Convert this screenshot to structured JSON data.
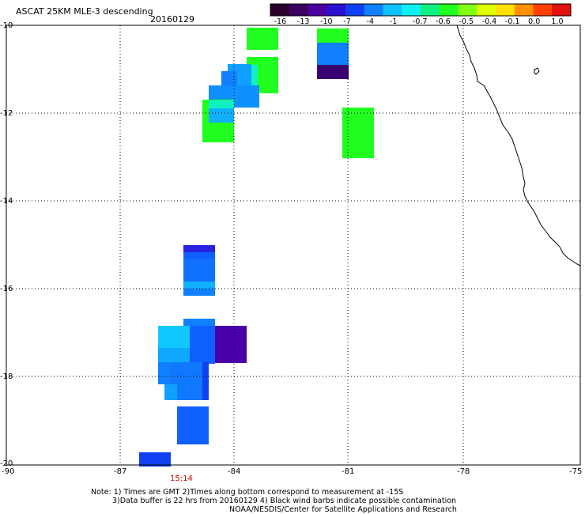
{
  "header": {
    "title": "ASCAT 25KM MLE-3 descending",
    "date": "20160129"
  },
  "colorbar": {
    "ticks": [
      "-16",
      "-13",
      "-10",
      "-7",
      "-4",
      "-1",
      "-0.7",
      "-0.6",
      "-0.5",
      "-0.4",
      "-0.1",
      "0.0",
      "1.0"
    ],
    "colors": [
      "#2a002a",
      "#3a0060",
      "#4b00a0",
      "#2a10d0",
      "#1040f0",
      "#1080ff",
      "#10c0ff",
      "#10f0f0",
      "#10f080",
      "#20ff20",
      "#80ff10",
      "#e0ff00",
      "#ffe000",
      "#ff9000",
      "#ff4000",
      "#e01010"
    ]
  },
  "axes": {
    "lat_labels": [
      "-10",
      "-12",
      "-14",
      "-16",
      "-18",
      "-20"
    ],
    "lon_labels": [
      "-90",
      "-87",
      "-84",
      "-81",
      "-78",
      "-75"
    ]
  },
  "time_label": "15:14",
  "notes": {
    "line1": "Note: 1) Times are GMT 2)Times along bottom correspond to measurement at -15S",
    "line2": "3)Data buffer is 22 hrs from 20160129 4) Black wind barbs indicate possible contamination",
    "line3": "NOAA/NESDIS/Center for Satellite Applications and Research"
  }
}
